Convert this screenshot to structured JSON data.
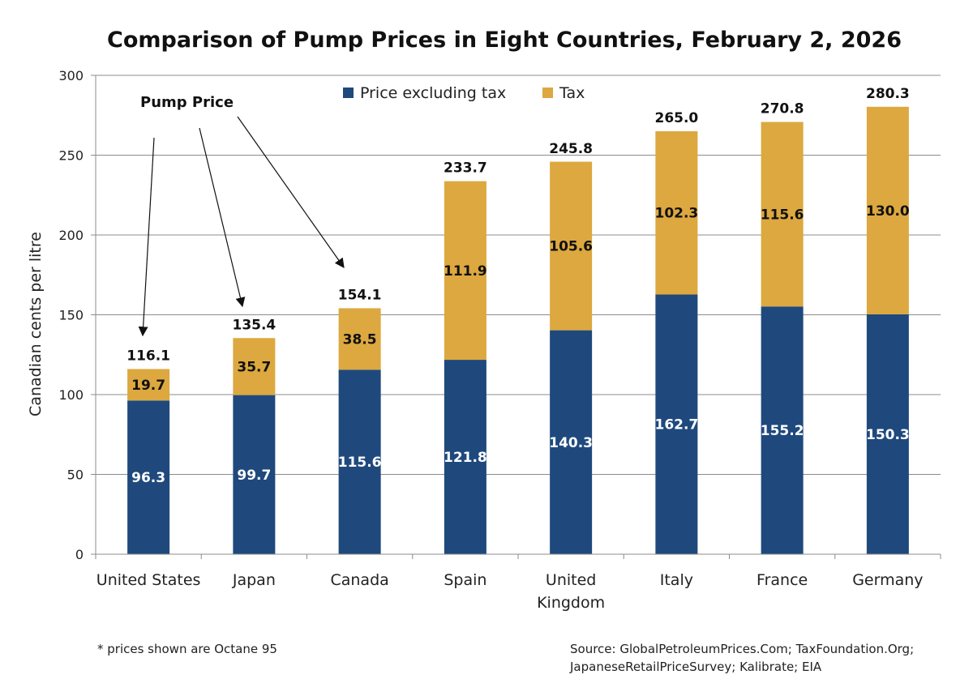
{
  "chart_data": {
    "type": "bar",
    "stacked": true,
    "title": "Comparison of Pump Prices in Eight Countries, February 2, 2026",
    "ylabel": "Canadian cents per litre",
    "xlabel": "",
    "ylim": [
      0,
      300
    ],
    "yticks": [
      0,
      50,
      100,
      150,
      200,
      250,
      300
    ],
    "grid": true,
    "legend_position": "top-center",
    "categories": [
      "United States",
      "Japan",
      "Canada",
      "Spain",
      "United Kingdom",
      "Italy",
      "France",
      "Germany"
    ],
    "category_lines": [
      [
        "United States"
      ],
      [
        "Japan"
      ],
      [
        "Canada"
      ],
      [
        "Spain"
      ],
      [
        "United",
        "Kingdom"
      ],
      [
        "Italy"
      ],
      [
        "France"
      ],
      [
        "Germany"
      ]
    ],
    "series": [
      {
        "name": "Price excluding tax",
        "color": "#1f497d",
        "label_color": "#ffffff",
        "values": [
          96.3,
          99.7,
          115.6,
          121.8,
          140.3,
          162.7,
          155.2,
          150.3
        ],
        "labels": [
          "96.3",
          "99.7",
          "115.6",
          "121.8",
          "140.3",
          "162.7",
          "155.2",
          "150.3"
        ]
      },
      {
        "name": "Tax",
        "color": "#dca83f",
        "label_color": "#111111",
        "values": [
          19.7,
          35.7,
          38.5,
          111.9,
          105.6,
          102.3,
          115.6,
          130.0
        ],
        "labels": [
          "19.7",
          "35.7",
          "38.5",
          "111.9",
          "105.6",
          "102.3",
          "115.6",
          "130.0"
        ]
      }
    ],
    "totals": [
      116.1,
      135.4,
      154.1,
      233.7,
      245.8,
      265.0,
      270.8,
      280.3
    ],
    "total_labels": [
      "116.1",
      "135.4",
      "154.1",
      "233.7",
      "245.8",
      "265.0",
      "270.8",
      "280.3"
    ],
    "annotation": {
      "text": "Pump Price",
      "targets": [
        "United States",
        "Japan",
        "Canada"
      ]
    }
  },
  "footnote": "* prices shown are Octane 95",
  "source_lines": [
    "Source: GlobalPetroleumPrices.Com; TaxFoundation.Org;",
    "JapaneseRetailPriceSurvey; Kalibrate; EIA"
  ]
}
